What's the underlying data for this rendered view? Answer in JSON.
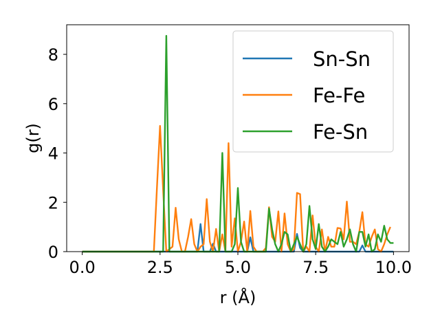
{
  "chart_data": {
    "type": "line",
    "title": "",
    "xlabel": "r (Å)",
    "ylabel": "g(r)",
    "xlim": [
      -0.5,
      10.5
    ],
    "ylim": [
      0,
      9.2
    ],
    "xticks": [
      0.0,
      2.5,
      5.0,
      7.5,
      10.0
    ],
    "xtick_labels": [
      "0.0",
      "2.5",
      "5.0",
      "7.5",
      "10.0"
    ],
    "yticks": [
      0,
      2,
      4,
      6,
      8
    ],
    "ytick_labels": [
      "0",
      "2",
      "4",
      "6",
      "8"
    ],
    "grid": false,
    "legend_position": "top-right",
    "series": [
      {
        "name": "Sn-Sn",
        "color": "#1f77b4",
        "x": [
          0,
          3.7,
          3.8,
          3.9,
          4.1,
          4.2,
          4.3,
          5.3,
          5.4,
          5.5,
          6.8,
          6.9,
          7.0,
          7.1,
          8.9,
          9.0,
          9.1,
          10.0
        ],
        "y": [
          0,
          0,
          1.12,
          0,
          0,
          0.32,
          0,
          0,
          0.58,
          0,
          0,
          0.72,
          0.15,
          0,
          0,
          0.25,
          0,
          0
        ]
      },
      {
        "name": "Fe-Fe",
        "color": "#ff7f0e",
        "x": [
          0,
          2.3,
          2.4,
          2.5,
          2.6,
          2.7,
          2.8,
          2.9,
          3.0,
          3.1,
          3.2,
          3.3,
          3.4,
          3.5,
          3.6,
          3.7,
          3.8,
          3.9,
          4.0,
          4.1,
          4.2,
          4.3,
          4.4,
          4.5,
          4.6,
          4.7,
          4.8,
          4.9,
          5.0,
          5.1,
          5.2,
          5.3,
          5.4,
          5.5,
          5.6,
          5.7,
          5.8,
          5.9,
          6.0,
          6.1,
          6.2,
          6.3,
          6.4,
          6.5,
          6.6,
          6.7,
          6.8,
          6.9,
          7.0,
          7.1,
          7.2,
          7.3,
          7.4,
          7.5,
          7.6,
          7.7,
          7.8,
          7.9,
          8.0,
          8.1,
          8.2,
          8.3,
          8.4,
          8.5,
          8.6,
          8.7,
          8.8,
          8.9,
          9.0,
          9.1,
          9.2,
          9.3,
          9.4,
          9.5,
          9.6,
          9.7,
          9.8,
          9.9
        ],
        "y": [
          0,
          0,
          2.6,
          5.1,
          2.5,
          0,
          0.1,
          0.2,
          1.78,
          0.5,
          0,
          0,
          0.6,
          1.32,
          0.3,
          0,
          0.2,
          0.3,
          2.13,
          0.4,
          0,
          0.92,
          0,
          0.7,
          0,
          4.4,
          0.2,
          1.35,
          0,
          0.4,
          1.22,
          0,
          1.65,
          0.2,
          0,
          0,
          0,
          0.15,
          1.8,
          0.6,
          0.4,
          1.63,
          0,
          1.55,
          0.3,
          0,
          0.1,
          2.38,
          2.33,
          0,
          0.2,
          0,
          1.47,
          0.2,
          0,
          0.9,
          0,
          0.6,
          0.2,
          0.2,
          0.96,
          0.94,
          0.5,
          2.03,
          0.4,
          0.4,
          0.3,
          0.8,
          1.6,
          0.3,
          0.2,
          0.6,
          0.9,
          0.1,
          0,
          0.3,
          0.7,
          1.0
        ]
      },
      {
        "name": "Fe-Sn",
        "color": "#2ca02c",
        "x": [
          0,
          2.6,
          2.7,
          2.8,
          4.4,
          4.5,
          4.6,
          4.8,
          4.9,
          5.0,
          5.1,
          5.2,
          5.9,
          6.0,
          6.1,
          6.2,
          6.3,
          6.4,
          6.5,
          6.6,
          6.7,
          6.8,
          6.9,
          7.0,
          7.1,
          7.2,
          7.3,
          7.4,
          7.5,
          7.6,
          7.7,
          7.8,
          7.9,
          8.0,
          8.1,
          8.2,
          8.3,
          8.4,
          8.5,
          8.6,
          8.7,
          8.8,
          8.9,
          9.0,
          9.1,
          9.2,
          9.3,
          9.4,
          9.5,
          9.6,
          9.7,
          9.8,
          9.9,
          10.0
        ],
        "y": [
          0,
          0,
          8.75,
          0,
          0,
          4.0,
          0,
          0,
          0.3,
          2.58,
          0.4,
          0,
          0,
          1.75,
          0.9,
          0.3,
          0,
          0.3,
          0.8,
          0.7,
          0,
          0.3,
          0.6,
          0.3,
          0,
          0.3,
          1.85,
          0.5,
          0.1,
          1.12,
          0.2,
          0,
          0.2,
          0.5,
          0.4,
          0.3,
          0.8,
          0.2,
          0.5,
          0.9,
          0.3,
          0,
          0.8,
          0.8,
          0.2,
          0.7,
          0,
          0.1,
          0.7,
          0.4,
          1.05,
          0.5,
          0.35,
          0.35
        ]
      }
    ]
  }
}
